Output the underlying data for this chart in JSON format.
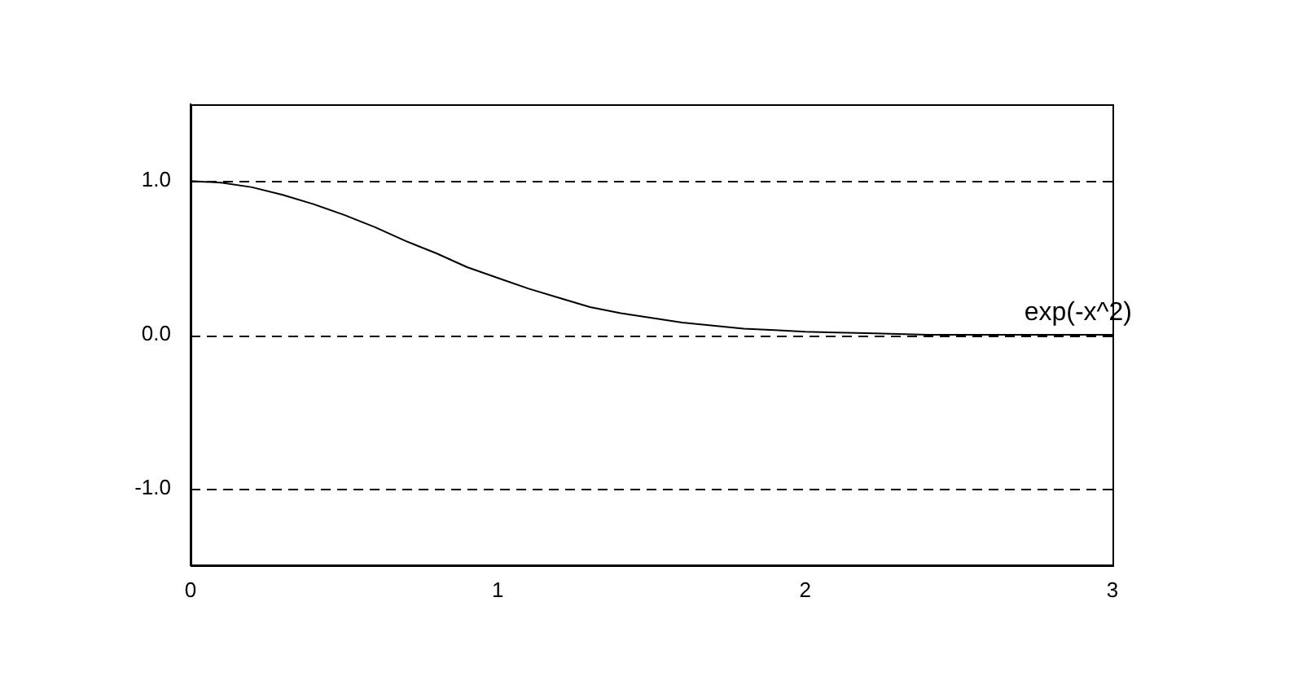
{
  "chart_data": {
    "type": "line",
    "x": [
      0,
      0.1,
      0.2,
      0.3,
      0.4,
      0.5,
      0.6,
      0.7,
      0.8,
      0.9,
      1.0,
      1.1,
      1.2,
      1.3,
      1.4,
      1.5,
      1.6,
      1.7,
      1.8,
      1.9,
      2.0,
      2.2,
      2.4,
      2.6,
      2.8,
      3.0
    ],
    "series": [
      {
        "name": "exp(-x^2)",
        "color": "#000000",
        "values": [
          1,
          0.99,
          0.96,
          0.91,
          0.85,
          0.78,
          0.7,
          0.61,
          0.53,
          0.44,
          0.37,
          0.3,
          0.24,
          0.18,
          0.14,
          0.11,
          0.08,
          0.06,
          0.04,
          0.03,
          0.02,
          0.01,
          0,
          0,
          0,
          0
        ]
      }
    ],
    "xlim": [
      0,
      3
    ],
    "xticks": [
      0,
      1,
      2,
      3
    ],
    "ylim": [
      -1.5,
      1.5
    ],
    "yticks": [
      {
        "value": -1,
        "label": "-1.0"
      },
      {
        "value": 0,
        "label": "0.0"
      },
      {
        "value": 1,
        "label": "1.0"
      }
    ],
    "grid": "y",
    "line_style": "solid",
    "marker": "none",
    "legend": false
  }
}
